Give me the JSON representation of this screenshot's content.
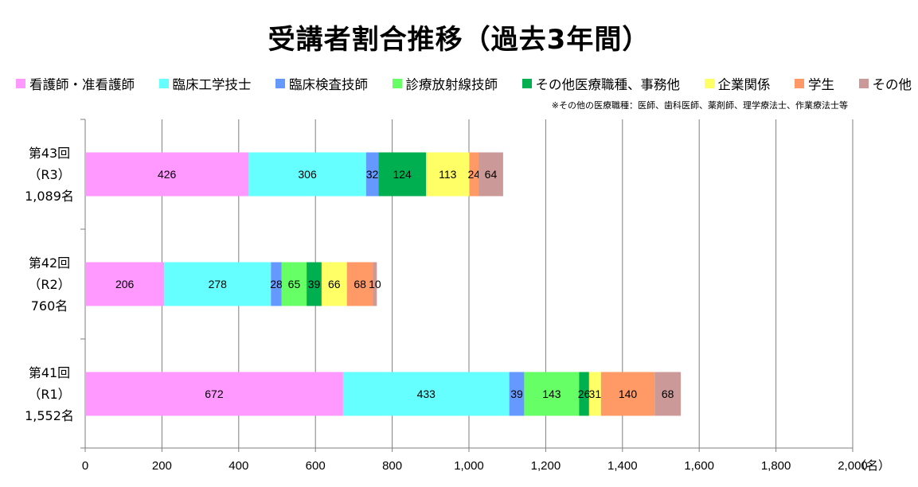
{
  "chart_data": {
    "type": "bar",
    "orientation": "horizontal",
    "stacked": true,
    "title": "受講者割合推移（過去3年間）",
    "footnote": "※その他の医療職種：医師、歯科医師、薬剤師、理学療法士、作業療法士等",
    "x_unit": "（名）",
    "xlim": [
      0,
      2000
    ],
    "x_ticks": [
      "0",
      "200",
      "400",
      "600",
      "800",
      "1,000",
      "1,200",
      "1,400",
      "1,600",
      "1,800",
      "2,000"
    ],
    "grid": true,
    "legend_position": "top",
    "categories": [
      {
        "line1": "第43回",
        "line2": "（R3）",
        "line3": "1,089名"
      },
      {
        "line1": "第42回",
        "line2": "（R2）",
        "line3": "760名"
      },
      {
        "line1": "第41回",
        "line2": "（R1）",
        "line3": "1,552名"
      }
    ],
    "series": [
      {
        "name": "看護師・准看護師",
        "color": "#FF99FF",
        "values": [
          426,
          206,
          672
        ]
      },
      {
        "name": "臨床工学技士",
        "color": "#66FFFF",
        "values": [
          306,
          278,
          433
        ]
      },
      {
        "name": "臨床検査技師",
        "color": "#6699FF",
        "values": [
          32,
          28,
          39
        ]
      },
      {
        "name": "診療放射線技師",
        "color": "#66FF66",
        "values": [
          null,
          65,
          143
        ]
      },
      {
        "name": "その他医療職種、事務他",
        "color": "#00B050",
        "values": [
          124,
          39,
          26
        ]
      },
      {
        "name": "企業関係",
        "color": "#FFFF66",
        "values": [
          113,
          66,
          31
        ]
      },
      {
        "name": "学生",
        "color": "#FF9966",
        "values": [
          24,
          68,
          140
        ]
      },
      {
        "name": "その他",
        "color": "#CC9999",
        "values": [
          64,
          10,
          68
        ]
      }
    ]
  }
}
